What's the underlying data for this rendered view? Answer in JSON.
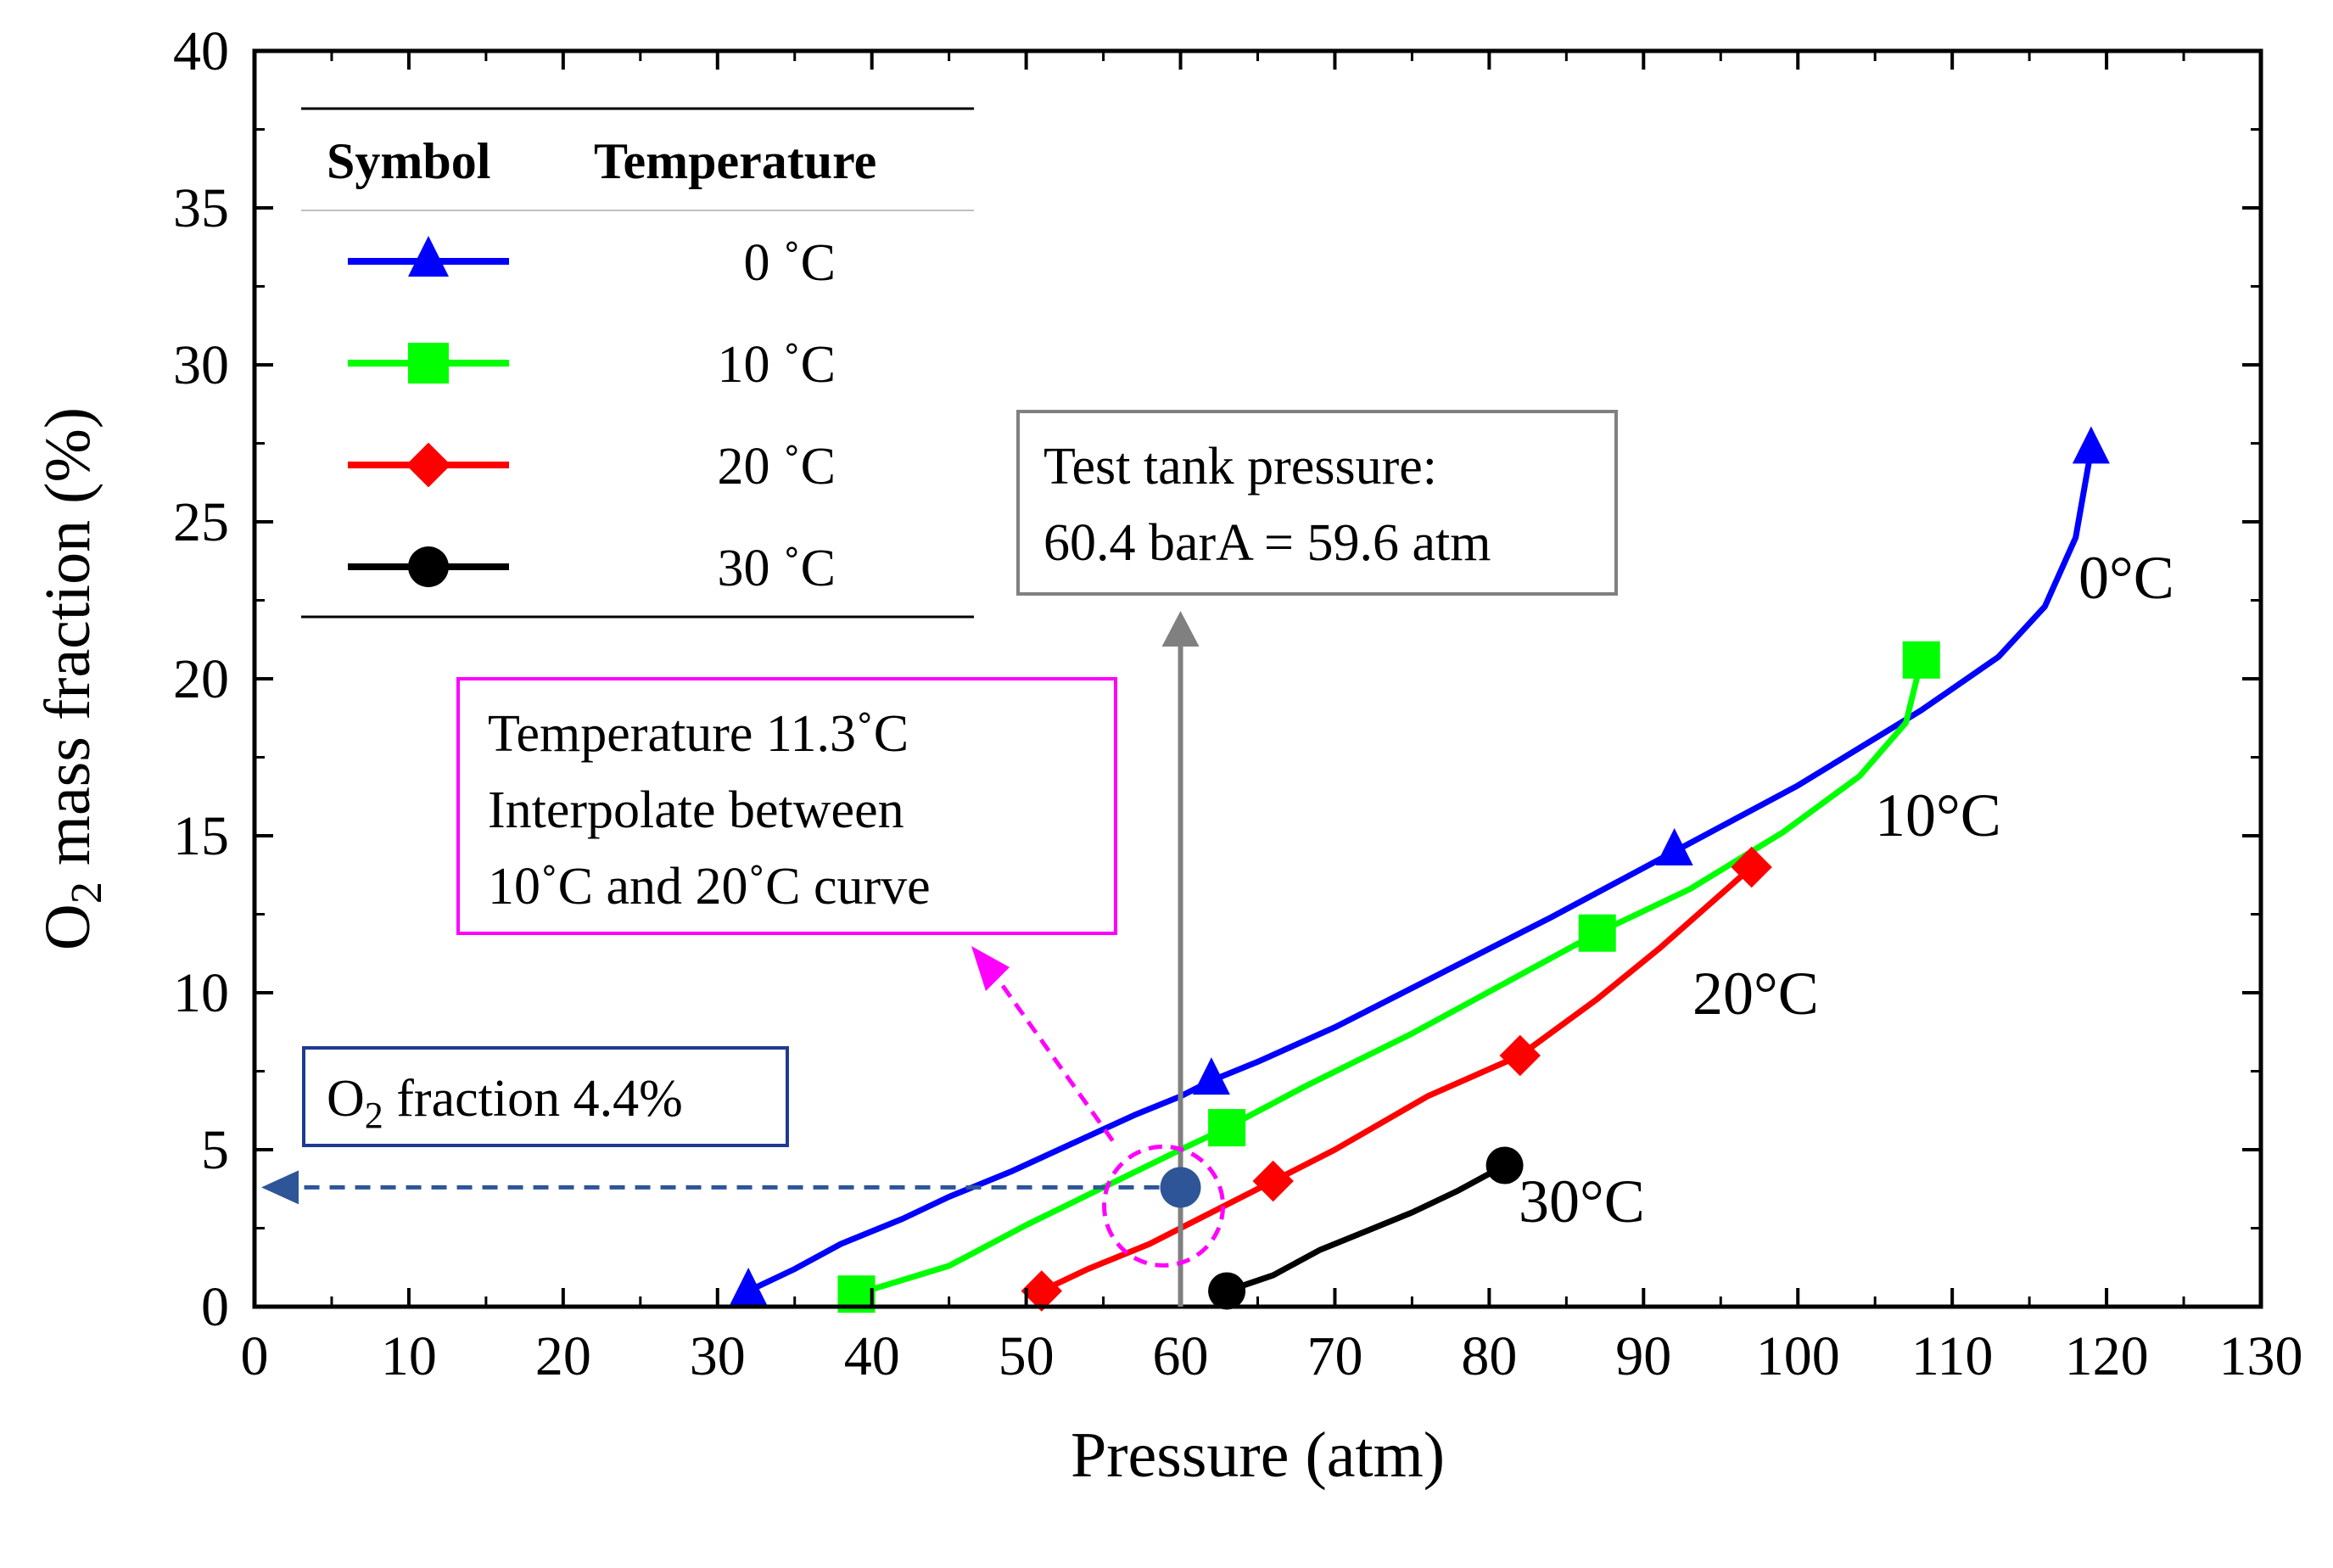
{
  "chart_data": {
    "type": "line",
    "xlabel": "Pressure (atm)",
    "ylabel_main": "O",
    "ylabel_sub": "2",
    "ylabel_rest": " mass fraction (%)",
    "xlim": [
      0,
      130
    ],
    "ylim": [
      0,
      40
    ],
    "xticks": [
      0,
      10,
      20,
      30,
      40,
      50,
      60,
      70,
      80,
      90,
      100,
      110,
      120,
      130
    ],
    "yticks": [
      0,
      5,
      10,
      15,
      20,
      25,
      30,
      35,
      40
    ],
    "grid": false,
    "legend": {
      "placement": "top-left",
      "header_symbol": "Symbol",
      "header_temperature": "Temperature"
    },
    "series": [
      {
        "name": "0 ˚C",
        "curve_label": "0°C",
        "color": "#0000ff",
        "marker": "triangle",
        "x": [
          32,
          35,
          38,
          42,
          45,
          49,
          53,
          57,
          60,
          62,
          65,
          70,
          76,
          84,
          92,
          100,
          108,
          113,
          116,
          118,
          119
        ],
        "y": [
          0.5,
          1.2,
          2.0,
          2.8,
          3.5,
          4.3,
          5.2,
          6.1,
          6.7,
          7.2,
          7.8,
          8.9,
          10.4,
          12.4,
          14.5,
          16.6,
          19.0,
          20.7,
          22.3,
          24.5,
          27.3
        ],
        "markers_x": [
          32,
          62,
          92,
          119
        ],
        "markers_y": [
          0.5,
          7.2,
          14.5,
          27.3
        ]
      },
      {
        "name": "10 ˚C",
        "curve_label": "10°C",
        "color": "#00ff00",
        "marker": "square",
        "x": [
          39,
          45,
          50,
          55,
          60,
          63,
          68,
          75,
          81,
          87,
          93,
          99,
          104,
          107,
          108
        ],
        "y": [
          0.4,
          1.3,
          2.6,
          3.8,
          5.0,
          5.7,
          7.0,
          8.7,
          10.3,
          11.9,
          13.3,
          15.1,
          16.9,
          18.6,
          20.6
        ],
        "markers_x": [
          39,
          63,
          87,
          108
        ],
        "markers_y": [
          0.4,
          5.7,
          11.9,
          20.6
        ]
      },
      {
        "name": "20 ˚C",
        "curve_label": "20°C",
        "color": "#ff0000",
        "marker": "diamond",
        "x": [
          51,
          54,
          58,
          62,
          66,
          70,
          76,
          82,
          87,
          91,
          94,
          97
        ],
        "y": [
          0.5,
          1.2,
          2.0,
          3.0,
          4.0,
          5.0,
          6.7,
          8.0,
          9.8,
          11.4,
          12.7,
          14.0
        ],
        "markers_x": [
          51,
          66,
          82,
          97
        ],
        "markers_y": [
          0.5,
          4.0,
          8.0,
          14.0
        ]
      },
      {
        "name": "30 ˚C",
        "curve_label": "30°C",
        "color": "#000000",
        "marker": "circle",
        "x": [
          63,
          66,
          69,
          72,
          75,
          78,
          81
        ],
        "y": [
          0.5,
          1.0,
          1.8,
          2.4,
          3.0,
          3.7,
          4.5
        ],
        "markers_x": [
          63,
          81
        ],
        "markers_y": [
          0.5,
          4.5
        ]
      }
    ],
    "annotations": {
      "tank_box": {
        "line1": "Test tank pressure:",
        "line2": "60.4 barA = 59.6 atm",
        "border_color": "#808080"
      },
      "interp_box": {
        "line1": "Temperature 11.3˚C",
        "line2": "Interpolate between",
        "line3": "10˚C and 20˚C curve",
        "border_color": "#ff00ff"
      },
      "fraction_box": {
        "text_main": "O",
        "text_sub": "2",
        "text_rest": " fraction 4.4%",
        "border_color": "#1f3a93"
      },
      "test_point": {
        "x": 60,
        "y": 3.8,
        "color": "#2e5597"
      },
      "pressure_marker_x": 60
    }
  }
}
